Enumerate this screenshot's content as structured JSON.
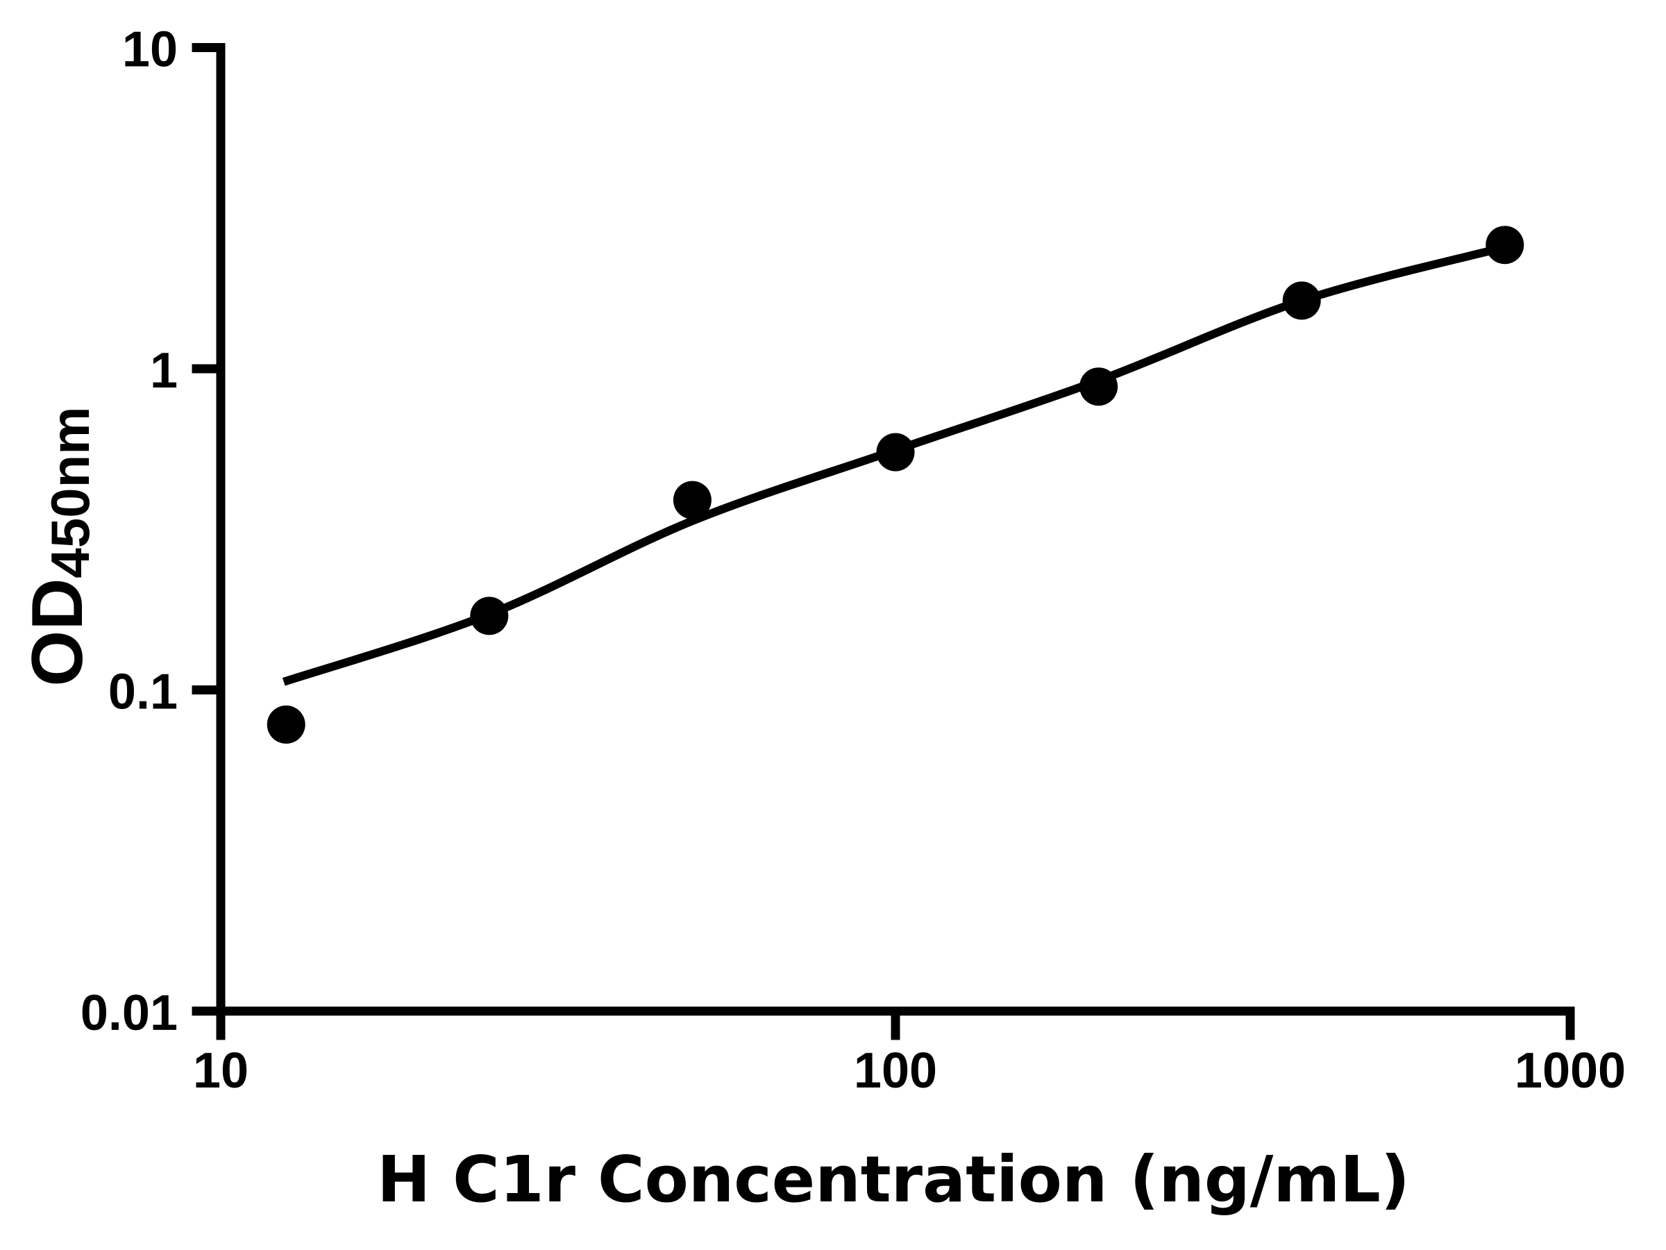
{
  "chart_data": {
    "type": "scatter",
    "title": "",
    "xlabel": "H C1r Concentration (ng/mL)",
    "ylabel": "OD",
    "ylabel_subscript": "450nm",
    "x_scale": "log",
    "y_scale": "log",
    "xlim": [
      10,
      1000
    ],
    "ylim": [
      0.01,
      10
    ],
    "grid": false,
    "legend": false,
    "background_color": "#ffffff",
    "axis_color": "#000000",
    "marker": {
      "shape": "filled-circle",
      "color": "#000000"
    },
    "curve_color": "#000000",
    "x_ticks": [
      {
        "value": 10,
        "label": "10"
      },
      {
        "value": 100,
        "label": "100"
      },
      {
        "value": 1000,
        "label": "1000"
      }
    ],
    "y_ticks": [
      {
        "value": 0.01,
        "label": "0.01"
      },
      {
        "value": 0.1,
        "label": "0.1"
      },
      {
        "value": 1,
        "label": "1"
      },
      {
        "value": 10,
        "label": "10"
      }
    ],
    "points": [
      {
        "x": 12.5,
        "y": 0.078
      },
      {
        "x": 25,
        "y": 0.17
      },
      {
        "x": 50,
        "y": 0.39
      },
      {
        "x": 100,
        "y": 0.55
      },
      {
        "x": 200,
        "y": 0.88
      },
      {
        "x": 400,
        "y": 1.63
      },
      {
        "x": 800,
        "y": 2.43
      }
    ],
    "fit_curve_samples": [
      {
        "x": 12.4,
        "y": 0.106
      },
      {
        "x": 25,
        "y": 0.172
      },
      {
        "x": 50,
        "y": 0.336
      },
      {
        "x": 100,
        "y": 0.558
      },
      {
        "x": 200,
        "y": 0.919
      },
      {
        "x": 400,
        "y": 1.63
      },
      {
        "x": 800,
        "y": 2.39
      }
    ]
  }
}
